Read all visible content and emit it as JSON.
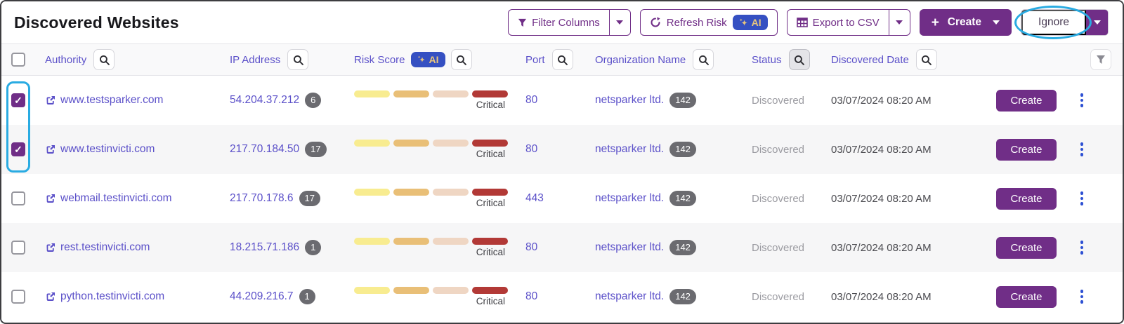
{
  "page": {
    "title": "Discovered Websites"
  },
  "toolbar": {
    "filter_columns_label": "Filter Columns",
    "refresh_risk_label": "Refresh Risk",
    "refresh_risk_ai": "AI",
    "export_csv_label": "Export to CSV",
    "create_label": "Create",
    "ignore_label": "Ignore"
  },
  "table": {
    "headers": {
      "authority": "Authority",
      "ip": "IP Address",
      "risk": "Risk Score",
      "risk_ai": "AI",
      "port": "Port",
      "organization": "Organization Name",
      "status": "Status",
      "date": "Discovered Date"
    },
    "rows": [
      {
        "checked": true,
        "authority": "www.testsparker.com",
        "ip": "54.204.37.212",
        "ip_count": "6",
        "risk_label": "Critical",
        "port": "80",
        "organization": "netsparker ltd.",
        "org_count": "142",
        "status": "Discovered",
        "discovered_date": "03/07/2024 08:20 AM",
        "action_label": "Create"
      },
      {
        "checked": true,
        "authority": "www.testinvicti.com",
        "ip": "217.70.184.50",
        "ip_count": "17",
        "risk_label": "Critical",
        "port": "80",
        "organization": "netsparker ltd.",
        "org_count": "142",
        "status": "Discovered",
        "discovered_date": "03/07/2024 08:20 AM",
        "action_label": "Create"
      },
      {
        "checked": false,
        "authority": "webmail.testinvicti.com",
        "ip": "217.70.178.6",
        "ip_count": "17",
        "risk_label": "Critical",
        "port": "443",
        "organization": "netsparker ltd.",
        "org_count": "142",
        "status": "Discovered",
        "discovered_date": "03/07/2024 08:20 AM",
        "action_label": "Create"
      },
      {
        "checked": false,
        "authority": "rest.testinvicti.com",
        "ip": "18.215.71.186",
        "ip_count": "1",
        "risk_label": "Critical",
        "port": "80",
        "organization": "netsparker ltd.",
        "org_count": "142",
        "status": "Discovered",
        "discovered_date": "03/07/2024 08:20 AM",
        "action_label": "Create"
      },
      {
        "checked": false,
        "authority": "python.testinvicti.com",
        "ip": "44.209.216.7",
        "ip_count": "1",
        "risk_label": "Critical",
        "port": "80",
        "organization": "netsparker ltd.",
        "org_count": "142",
        "status": "Discovered",
        "discovered_date": "03/07/2024 08:20 AM",
        "action_label": "Create"
      }
    ]
  },
  "risk": {
    "segments": [
      {
        "name": "low",
        "color": "#f8ec90"
      },
      {
        "name": "medium",
        "color": "#e9bf77"
      },
      {
        "name": "high",
        "color": "#efd6c3"
      },
      {
        "name": "critical",
        "color": "#b23936"
      }
    ]
  },
  "colors": {
    "brand_purple": "#702e87",
    "link_purple": "#5b50c9",
    "ai_badge_blue": "#3550c2",
    "ai_badge_gold": "#e8c57d",
    "annotation_blue": "#29abe2",
    "count_badge_gray": "#6b6b70",
    "status_gray": "#9b9ba1"
  }
}
